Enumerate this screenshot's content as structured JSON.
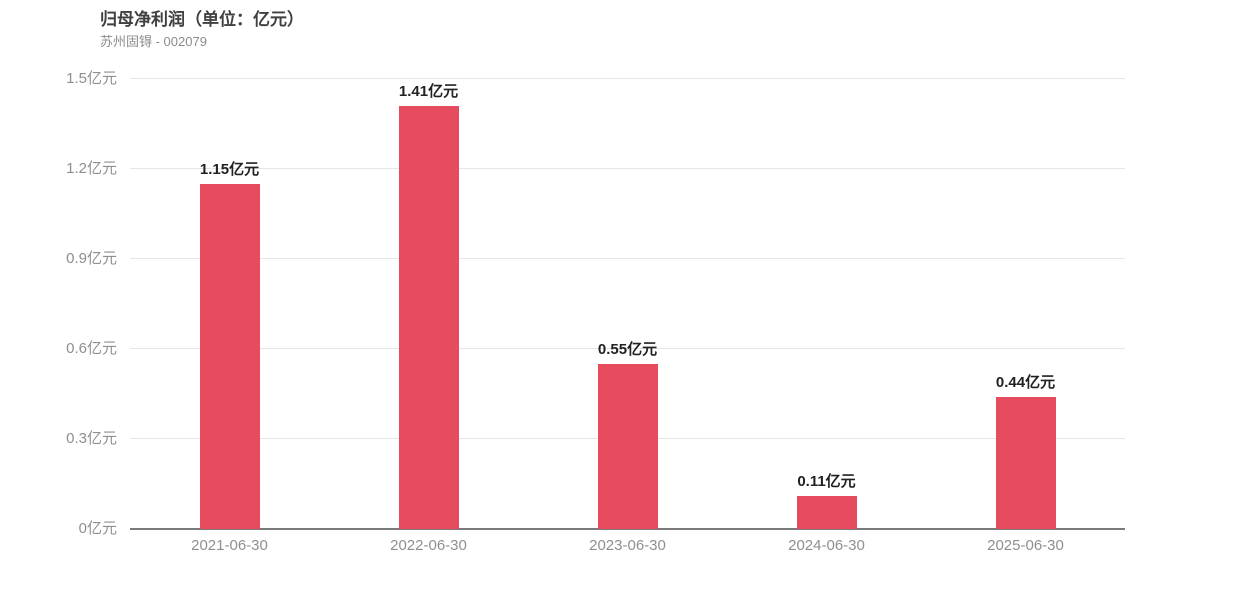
{
  "header": {
    "title": "归母净利润（单位：亿元）",
    "subtitle": "苏州固锝 - 002079"
  },
  "chart_data": {
    "type": "bar",
    "title": "归母净利润（单位：亿元）",
    "subtitle": "苏州固锝 - 002079",
    "categories": [
      "2021-06-30",
      "2022-06-30",
      "2023-06-30",
      "2024-06-30",
      "2025-06-30"
    ],
    "values": [
      1.15,
      1.41,
      0.55,
      0.11,
      0.44
    ],
    "value_labels": [
      "1.15亿元",
      "1.41亿元",
      "0.55亿元",
      "0.11亿元",
      "0.44亿元"
    ],
    "unit": "亿元",
    "xlabel": "",
    "ylabel": "",
    "ylim": [
      0,
      1.5
    ],
    "y_ticks": [
      0,
      0.3,
      0.6,
      0.9,
      1.2,
      1.5
    ],
    "y_tick_labels": [
      "0亿元",
      "0.3亿元",
      "0.6亿元",
      "0.9亿元",
      "1.2亿元",
      "1.5亿元"
    ],
    "grid": true,
    "legend": "none",
    "colors": {
      "bar": "#e64c5e",
      "grid_line": "#e6e6e6",
      "axis_line": "#7a7a7a",
      "tick_label": "#8f8f8f",
      "value_label": "#222222",
      "title": "#404040",
      "subtitle": "#8c8c8c",
      "background": "#ffffff"
    }
  }
}
